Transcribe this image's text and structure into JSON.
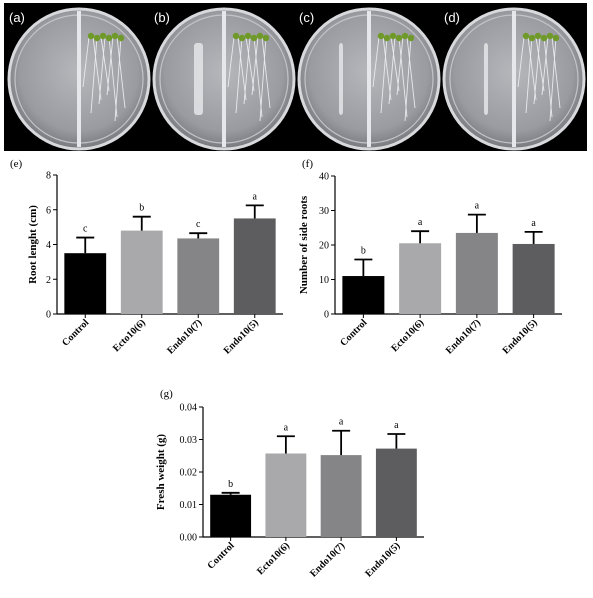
{
  "plates": [
    "(a)",
    "(b)",
    "(c)",
    "(d)"
  ],
  "colors": {
    "bars": [
      "#000000",
      "#a9a9ab",
      "#858587",
      "#5d5d5f"
    ],
    "plate_bg": "#9fa0a4",
    "seedling": "#6f9a2a"
  },
  "chart_data": [
    {
      "type": "bar",
      "panel": "(e)",
      "categories": [
        "Control",
        "Ecto10(6)",
        "Endo10(7)",
        "Endo10(5)"
      ],
      "values": [
        3.5,
        4.8,
        4.35,
        5.5
      ],
      "errors": [
        0.9,
        0.8,
        0.3,
        0.75
      ],
      "significance": [
        "c",
        "b",
        "c",
        "a"
      ],
      "ylabel": "Root lenght (cm)",
      "ylim": [
        0,
        8
      ],
      "yticks": [
        "0",
        "2",
        "4",
        "6",
        "8"
      ]
    },
    {
      "type": "bar",
      "panel": "(f)",
      "categories": [
        "Control",
        "Ecto10(6)",
        "Endo10(7)",
        "Endo10(5)"
      ],
      "values": [
        11,
        20.5,
        23.5,
        20.3
      ],
      "errors": [
        4.8,
        3.5,
        5.3,
        3.5
      ],
      "significance": [
        "b",
        "a",
        "a",
        "a"
      ],
      "ylabel": "Number of side roots",
      "ylim": [
        0,
        40
      ],
      "yticks": [
        "0",
        "10",
        "20",
        "30",
        "40"
      ]
    },
    {
      "type": "bar",
      "panel": "(g)",
      "categories": [
        "Control",
        "Ecto10(6)",
        "Endo10(7)",
        "Endo10(5)"
      ],
      "values": [
        0.013,
        0.0257,
        0.0252,
        0.0272
      ],
      "errors": [
        0.0006,
        0.0053,
        0.0075,
        0.0045
      ],
      "significance": [
        "b",
        "a",
        "a",
        "a"
      ],
      "ylabel": "Fresh weight (g)",
      "ylim": [
        0,
        0.04
      ],
      "yticks": [
        "0.00",
        "0.01",
        "0.02",
        "0.03",
        "0.04"
      ]
    }
  ]
}
